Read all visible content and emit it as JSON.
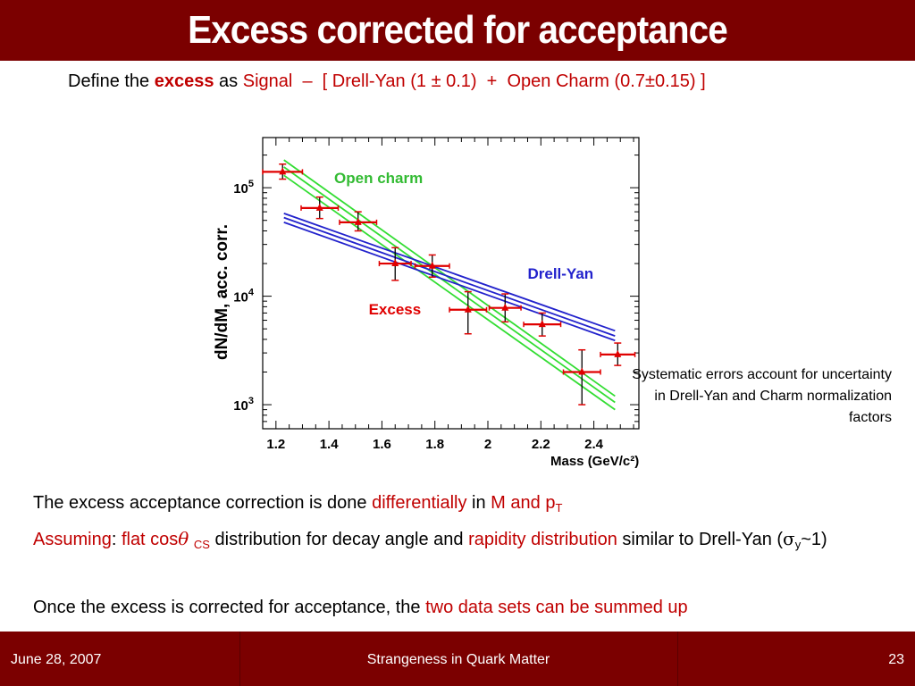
{
  "slide": {
    "title": "Excess corrected for acceptance",
    "definition": {
      "prefix": "Define the",
      "excess_word": "excess",
      "as_word": "as",
      "formula": "Signal  –  [ Drell-Yan (1 ± 0.1)  +  Open Charm (0.7±0.15) ]"
    },
    "systematics_note": "Systematic errors account for uncertainty in Drell-Yan and Charm normalization factors",
    "para1": {
      "t1": "The excess acceptance correction is done",
      "t2": "differentially",
      "t3": "in",
      "t4": "M and p",
      "t4_sub": "T"
    },
    "para2": {
      "t1": "Assuming",
      "t2": ":",
      "t3": "flat cos",
      "theta": "θ",
      "cs_sub": "CS",
      "t4": "distribution for decay angle and",
      "t5": "rapidity distribution",
      "t6": "similar to Drell-Yan (",
      "sigma": "σ",
      "sigma_sub": "y",
      "t7": "~1)"
    },
    "para3": {
      "t1": "Once the excess is corrected for acceptance, the",
      "t2": "two data sets can be summed up"
    }
  },
  "footer": {
    "date": "June 28, 2007",
    "conference": "Strangeness in Quark Matter",
    "page": "23"
  },
  "colors": {
    "banner": "#7b0000",
    "highlight": "#c00000",
    "excess": "#e00000",
    "open_charm": "#33dd33",
    "drell_yan": "#2222cc"
  },
  "chart_data": {
    "type": "scatter",
    "xlabel": "Mass (GeV/c²)",
    "ylabel": "dN/dM, acc. corr.",
    "xlim": [
      1.15,
      2.57
    ],
    "ylim": [
      600,
      290000
    ],
    "yscale": "log",
    "x_ticks": [
      1.2,
      1.4,
      1.6,
      1.8,
      2.0,
      2.2,
      2.4
    ],
    "x_tick_labels": [
      "1.2",
      "1.4",
      "1.6",
      "1.8",
      "2",
      "2.2",
      "2.4"
    ],
    "y_tick_labels": [
      {
        "value": 1000,
        "base": "10",
        "exp": "3"
      },
      {
        "value": 10000,
        "base": "10",
        "exp": "4"
      },
      {
        "value": 100000,
        "base": "10",
        "exp": "5"
      }
    ],
    "series": [
      {
        "name": "Excess",
        "points": [
          {
            "x": 1.225,
            "y": 140000,
            "xerr": 0.075,
            "ylo": 120000,
            "yhi": 165000
          },
          {
            "x": 1.365,
            "y": 65000,
            "xerr": 0.07,
            "ylo": 52000,
            "yhi": 82000
          },
          {
            "x": 1.51,
            "y": 48000,
            "xerr": 0.07,
            "ylo": 40000,
            "yhi": 60000
          },
          {
            "x": 1.65,
            "y": 20000,
            "xerr": 0.06,
            "ylo": 14000,
            "yhi": 28000
          },
          {
            "x": 1.79,
            "y": 19000,
            "xerr": 0.065,
            "ylo": 15000,
            "yhi": 24000
          },
          {
            "x": 1.925,
            "y": 7500,
            "xerr": 0.07,
            "ylo": 4500,
            "yhi": 11000
          },
          {
            "x": 2.065,
            "y": 7800,
            "xerr": 0.06,
            "ylo": 5800,
            "yhi": 10500
          },
          {
            "x": 2.205,
            "y": 5500,
            "xerr": 0.07,
            "ylo": 4300,
            "yhi": 7000
          },
          {
            "x": 2.355,
            "y": 2000,
            "xerr": 0.07,
            "ylo": 1000,
            "yhi": 3200
          },
          {
            "x": 2.49,
            "y": 2900,
            "xerr": 0.065,
            "ylo": 2300,
            "yhi": 3700
          }
        ]
      },
      {
        "name": "Open charm",
        "band": [
          {
            "x": 1.23,
            "lo": 130000,
            "mid": 155000,
            "hi": 180000
          },
          {
            "x": 2.48,
            "lo": 900,
            "mid": 1050,
            "hi": 1200
          }
        ]
      },
      {
        "name": "Drell-Yan",
        "band": [
          {
            "x": 1.23,
            "lo": 48000,
            "mid": 53000,
            "hi": 58000
          },
          {
            "x": 2.48,
            "lo": 3900,
            "mid": 4300,
            "hi": 4800
          }
        ]
      }
    ],
    "annotations": [
      {
        "text": "Open charm",
        "x": 1.42,
        "y": 110000,
        "color": "#33bb33"
      },
      {
        "text": "Drell-Yan",
        "x": 2.15,
        "y": 14500,
        "color": "#2222cc"
      },
      {
        "text": "Excess",
        "x": 1.55,
        "y": 6800,
        "color": "#e00000"
      }
    ]
  }
}
